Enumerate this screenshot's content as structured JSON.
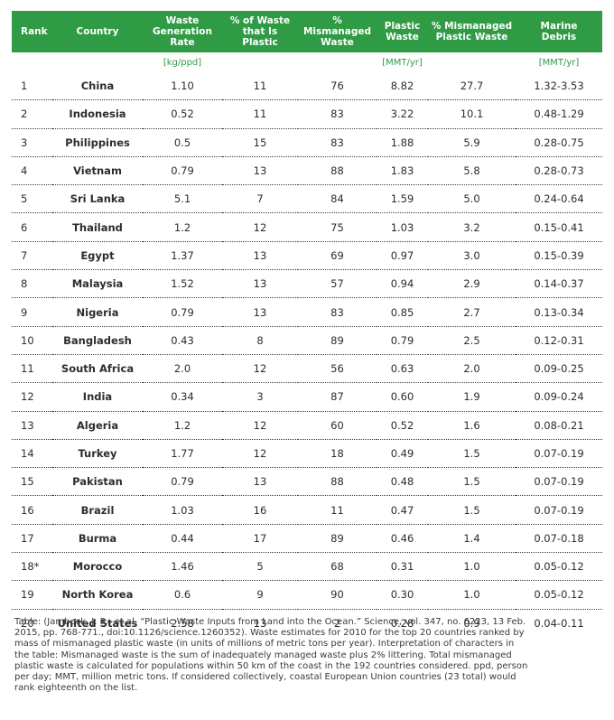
{
  "table": {
    "headers": {
      "rank": "Rank",
      "country": "Country",
      "waste_gen_line1": "Waste",
      "waste_gen_line2": "Generation Rate",
      "pct_plastic_line1": "% of Waste",
      "pct_plastic_line2": "that Is Plastic",
      "pct_mismanaged_line1": "% Mismanaged",
      "pct_mismanaged_line2": "Waste",
      "plastic_waste_line1": "Plastic",
      "plastic_waste_line2": "Waste",
      "pct_mism_plastic_line1": "% Mismanaged",
      "pct_mism_plastic_line2": "Plastic Waste",
      "marine_line1": "Marine",
      "marine_line2": "Debris"
    },
    "units": {
      "waste_gen": "[kg/ppd]",
      "plastic_waste": "[MMT/yr]",
      "marine": "[MMT/yr]"
    },
    "rows": [
      {
        "rank": "1",
        "country": "China",
        "waste_gen": "1.10",
        "pct_plastic": "11",
        "pct_mismanaged": "76",
        "plastic_waste": "8.82",
        "pct_mism_plastic": "27.7",
        "marine": "1.32-3.53"
      },
      {
        "rank": "2",
        "country": "Indonesia",
        "waste_gen": "0.52",
        "pct_plastic": "11",
        "pct_mismanaged": "83",
        "plastic_waste": "3.22",
        "pct_mism_plastic": "10.1",
        "marine": "0.48-1.29"
      },
      {
        "rank": "3",
        "country": "Philippines",
        "waste_gen": "0.5",
        "pct_plastic": "15",
        "pct_mismanaged": "83",
        "plastic_waste": "1.88",
        "pct_mism_plastic": "5.9",
        "marine": "0.28-0.75"
      },
      {
        "rank": "4",
        "country": "Vietnam",
        "waste_gen": "0.79",
        "pct_plastic": "13",
        "pct_mismanaged": "88",
        "plastic_waste": "1.83",
        "pct_mism_plastic": "5.8",
        "marine": "0.28-0.73"
      },
      {
        "rank": "5",
        "country": "Sri Lanka",
        "waste_gen": "5.1",
        "pct_plastic": "7",
        "pct_mismanaged": "84",
        "plastic_waste": "1.59",
        "pct_mism_plastic": "5.0",
        "marine": "0.24-0.64"
      },
      {
        "rank": "6",
        "country": "Thailand",
        "waste_gen": "1.2",
        "pct_plastic": "12",
        "pct_mismanaged": "75",
        "plastic_waste": "1.03",
        "pct_mism_plastic": "3.2",
        "marine": "0.15-0.41"
      },
      {
        "rank": "7",
        "country": "Egypt",
        "waste_gen": "1.37",
        "pct_plastic": "13",
        "pct_mismanaged": "69",
        "plastic_waste": "0.97",
        "pct_mism_plastic": "3.0",
        "marine": "0.15-0.39"
      },
      {
        "rank": "8",
        "country": "Malaysia",
        "waste_gen": "1.52",
        "pct_plastic": "13",
        "pct_mismanaged": "57",
        "plastic_waste": "0.94",
        "pct_mism_plastic": "2.9",
        "marine": "0.14-0.37"
      },
      {
        "rank": "9",
        "country": "Nigeria",
        "waste_gen": "0.79",
        "pct_plastic": "13",
        "pct_mismanaged": "83",
        "plastic_waste": "0.85",
        "pct_mism_plastic": "2.7",
        "marine": "0.13-0.34"
      },
      {
        "rank": "10",
        "country": "Bangladesh",
        "waste_gen": "0.43",
        "pct_plastic": "8",
        "pct_mismanaged": "89",
        "plastic_waste": "0.79",
        "pct_mism_plastic": "2.5",
        "marine": "0.12-0.31"
      },
      {
        "rank": "11",
        "country": "South Africa",
        "waste_gen": "2.0",
        "pct_plastic": "12",
        "pct_mismanaged": "56",
        "plastic_waste": "0.63",
        "pct_mism_plastic": "2.0",
        "marine": "0.09-0.25"
      },
      {
        "rank": "12",
        "country": "India",
        "waste_gen": "0.34",
        "pct_plastic": "3",
        "pct_mismanaged": "87",
        "plastic_waste": "0.60",
        "pct_mism_plastic": "1.9",
        "marine": "0.09-0.24"
      },
      {
        "rank": "13",
        "country": "Algeria",
        "waste_gen": "1.2",
        "pct_plastic": "12",
        "pct_mismanaged": "60",
        "plastic_waste": "0.52",
        "pct_mism_plastic": "1.6",
        "marine": "0.08-0.21"
      },
      {
        "rank": "14",
        "country": "Turkey",
        "waste_gen": "1.77",
        "pct_plastic": "12",
        "pct_mismanaged": "18",
        "plastic_waste": "0.49",
        "pct_mism_plastic": "1.5",
        "marine": "0.07-0.19"
      },
      {
        "rank": "15",
        "country": "Pakistan",
        "waste_gen": "0.79",
        "pct_plastic": "13",
        "pct_mismanaged": "88",
        "plastic_waste": "0.48",
        "pct_mism_plastic": "1.5",
        "marine": "0.07-0.19"
      },
      {
        "rank": "16",
        "country": "Brazil",
        "waste_gen": "1.03",
        "pct_plastic": "16",
        "pct_mismanaged": "11",
        "plastic_waste": "0.47",
        "pct_mism_plastic": "1.5",
        "marine": "0.07-0.19"
      },
      {
        "rank": "17",
        "country": "Burma",
        "waste_gen": "0.44",
        "pct_plastic": "17",
        "pct_mismanaged": "89",
        "plastic_waste": "0.46",
        "pct_mism_plastic": "1.4",
        "marine": "0.07-0.18"
      },
      {
        "rank": "18*",
        "country": "Morocco",
        "waste_gen": "1.46",
        "pct_plastic": "5",
        "pct_mismanaged": "68",
        "plastic_waste": "0.31",
        "pct_mism_plastic": "1.0",
        "marine": "0.05-0.12"
      },
      {
        "rank": "19",
        "country": "North Korea",
        "waste_gen": "0.6",
        "pct_plastic": "9",
        "pct_mismanaged": "90",
        "plastic_waste": "0.30",
        "pct_mism_plastic": "1.0",
        "marine": "0.05-0.12"
      },
      {
        "rank": "20",
        "country": "United States",
        "waste_gen": "2.58",
        "pct_plastic": "13",
        "pct_mismanaged": "2",
        "plastic_waste": "0.28",
        "pct_mism_plastic": "0.9",
        "marine": "0.04-0.11"
      }
    ]
  },
  "footnote": {
    "lines": [
      "Table: (Jambeck, J. R., et al. “Plastic Waste Inputs from Land into the Ocean.” Science, vol. 347, no. 6223, 13 Feb.",
      "2015, pp. 768-771., doi:10.1126/science.1260352). Waste estimates for 2010 for the top 20 countries ranked by",
      "mass of mismanaged plastic waste (in units of millions of metric tons per year). Interpretation of characters in",
      "the table: Mismanaged waste is the sum of inadequately managed waste plus 2% littering. Total mismanaged",
      "plastic waste is calculated for populations within 50 km of the coast in the 192 countries considered. ppd, person",
      "per day; MMT, million metric tons. If considered collectively, coastal European Union countries (23 total) would",
      "rank eighteenth on the list."
    ]
  },
  "colors": {
    "header_bg": "#2f9b45",
    "unit_text": "#2f9b45"
  }
}
